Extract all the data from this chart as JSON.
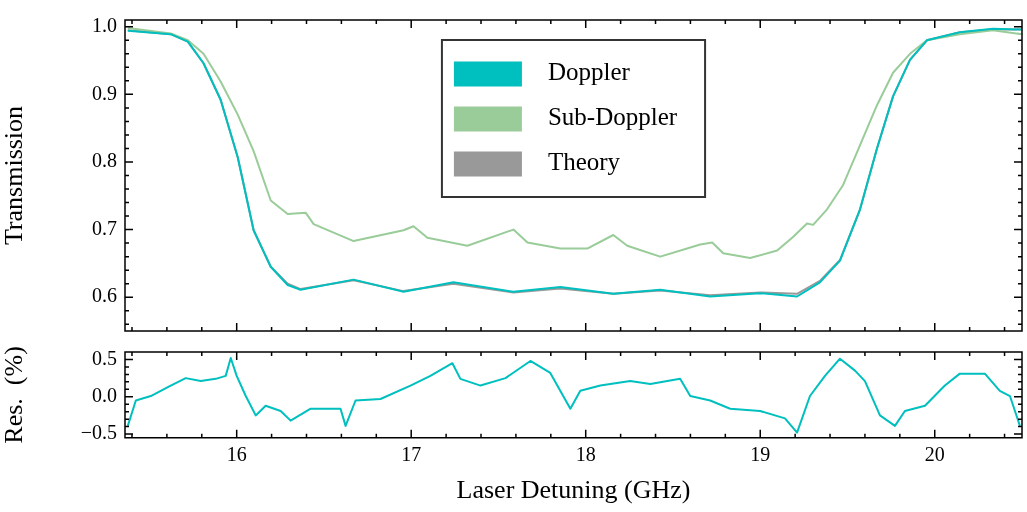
{
  "chart_data": [
    {
      "type": "line",
      "ylabel": "Transmission",
      "legend": "top",
      "tick_labels": "y",
      "xlim": [
        15.36,
        20.5
      ],
      "ylim": [
        0.55,
        1.01
      ],
      "xticks": [
        {
          "value": 15.4,
          "label": null
        },
        {
          "value": 15.6,
          "label": null
        },
        {
          "value": 15.8,
          "label": null
        },
        16,
        {
          "value": 16.2,
          "label": null
        },
        {
          "value": 16.4,
          "label": null
        },
        {
          "value": 16.6,
          "label": null
        },
        {
          "value": 16.8,
          "label": null
        },
        17,
        {
          "value": 17.2,
          "label": null
        },
        {
          "value": 17.4,
          "label": null
        },
        {
          "value": 17.6,
          "label": null
        },
        {
          "value": 17.8,
          "label": null
        },
        18,
        {
          "value": 18.2,
          "label": null
        },
        {
          "value": 18.4,
          "label": null
        },
        {
          "value": 18.6,
          "label": null
        },
        {
          "value": 18.8,
          "label": null
        },
        19,
        {
          "value": 19.2,
          "label": null
        },
        {
          "value": 19.4,
          "label": null
        },
        {
          "value": 19.6,
          "label": null
        },
        {
          "value": 19.8,
          "label": null
        },
        20,
        {
          "value": 20.2,
          "label": null
        },
        {
          "value": 20.4,
          "label": null
        }
      ],
      "yticks": [
        {
          "value": 0.56,
          "label": null
        },
        {
          "value": 0.58,
          "label": null
        },
        0.6,
        {
          "value": 0.62,
          "label": null
        },
        {
          "value": 0.64,
          "label": null
        },
        {
          "value": 0.66,
          "label": null
        },
        {
          "value": 0.68,
          "label": null
        },
        0.7,
        {
          "value": 0.72,
          "label": null
        },
        {
          "value": 0.74,
          "label": null
        },
        {
          "value": 0.76,
          "label": null
        },
        {
          "value": 0.78,
          "label": null
        },
        0.8,
        {
          "value": 0.82,
          "label": null
        },
        {
          "value": 0.84,
          "label": null
        },
        {
          "value": 0.86,
          "label": null
        },
        {
          "value": 0.88,
          "label": null
        },
        0.9,
        {
          "value": 0.92,
          "label": null
        },
        {
          "value": 0.94,
          "label": null
        },
        {
          "value": 0.96,
          "label": null
        },
        {
          "value": 0.98,
          "label": null
        },
        {
          "value": 1,
          "label": "1.0"
        }
      ],
      "series": [
        {
          "name": "Doppler",
          "color": "#00bfbf",
          "x": [
            15.376,
            15.622,
            15.72,
            15.81,
            15.908,
            16.006,
            16.097,
            16.195,
            16.292,
            16.366,
            16.67,
            16.956,
            17.242,
            17.586,
            17.855,
            18.158,
            18.427,
            18.713,
            18.999,
            19.211,
            19.342,
            19.457,
            19.572,
            19.669,
            19.761,
            19.858,
            19.955,
            20.144,
            20.333,
            20.499
          ],
          "values": [
            0.994,
            0.989,
            0.978,
            0.946,
            0.892,
            0.807,
            0.699,
            0.645,
            0.618,
            0.611,
            0.626,
            0.608,
            0.622,
            0.608,
            0.615,
            0.605,
            0.611,
            0.601,
            0.606,
            0.601,
            0.622,
            0.654,
            0.73,
            0.82,
            0.897,
            0.951,
            0.98,
            0.992,
            0.997,
            0.996
          ]
        },
        {
          "name": "Sub-Doppler",
          "color": "#99cc99",
          "x": [
            15.376,
            15.622,
            15.72,
            15.81,
            15.908,
            16.006,
            16.097,
            16.195,
            16.292,
            16.395,
            16.441,
            16.67,
            16.956,
            17.013,
            17.093,
            17.322,
            17.586,
            17.666,
            17.855,
            18.009,
            18.158,
            18.238,
            18.427,
            18.656,
            18.725,
            18.788,
            18.942,
            19.097,
            19.188,
            19.268,
            19.303,
            19.383,
            19.475,
            19.572,
            19.669,
            19.761,
            19.858,
            19.955,
            20.144,
            20.333,
            20.499
          ],
          "values": [
            0.998,
            0.99,
            0.98,
            0.96,
            0.919,
            0.87,
            0.816,
            0.743,
            0.723,
            0.725,
            0.708,
            0.683,
            0.699,
            0.705,
            0.688,
            0.676,
            0.7,
            0.681,
            0.672,
            0.672,
            0.692,
            0.676,
            0.66,
            0.678,
            0.681,
            0.665,
            0.658,
            0.669,
            0.689,
            0.709,
            0.707,
            0.73,
            0.766,
            0.825,
            0.884,
            0.932,
            0.96,
            0.98,
            0.989,
            0.995,
            0.989
          ]
        },
        {
          "name": "Theory",
          "color": "#999999",
          "x": [
            15.376,
            15.622,
            15.72,
            15.81,
            15.908,
            16.006,
            16.097,
            16.195,
            16.292,
            16.366,
            16.67,
            16.956,
            17.242,
            17.586,
            17.855,
            18.158,
            18.427,
            18.713,
            18.999,
            19.211,
            19.342,
            19.457,
            19.572,
            19.669,
            19.761,
            19.858,
            19.955,
            20.144,
            20.333,
            20.499
          ],
          "values": [
            0.995,
            0.989,
            0.978,
            0.946,
            0.892,
            0.807,
            0.699,
            0.645,
            0.62,
            0.612,
            0.625,
            0.609,
            0.62,
            0.607,
            0.613,
            0.605,
            0.61,
            0.603,
            0.607,
            0.605,
            0.624,
            0.655,
            0.73,
            0.82,
            0.897,
            0.951,
            0.98,
            0.992,
            0.996,
            0.996
          ]
        }
      ]
    },
    {
      "type": "line",
      "xlabel": "Laser Detuning (GHz)",
      "ylabel": "Res.  (%)",
      "xlim": [
        15.36,
        20.5
      ],
      "ylim": [
        -0.55,
        0.6
      ],
      "xticks": [
        {
          "value": 15.4,
          "label": null
        },
        {
          "value": 15.6,
          "label": null
        },
        {
          "value": 15.8,
          "label": null
        },
        16,
        {
          "value": 16.2,
          "label": null
        },
        {
          "value": 16.4,
          "label": null
        },
        {
          "value": 16.6,
          "label": null
        },
        {
          "value": 16.8,
          "label": null
        },
        17,
        {
          "value": 17.2,
          "label": null
        },
        {
          "value": 17.4,
          "label": null
        },
        {
          "value": 17.6,
          "label": null
        },
        {
          "value": 17.8,
          "label": null
        },
        18,
        {
          "value": 18.2,
          "label": null
        },
        {
          "value": 18.4,
          "label": null
        },
        {
          "value": 18.6,
          "label": null
        },
        {
          "value": 18.8,
          "label": null
        },
        19,
        {
          "value": 19.2,
          "label": null
        },
        {
          "value": 19.4,
          "label": null
        },
        {
          "value": 19.6,
          "label": null
        },
        {
          "value": 19.8,
          "label": null
        },
        20,
        {
          "value": 20.2,
          "label": null
        },
        {
          "value": 20.4,
          "label": null
        }
      ],
      "yticks": [
        {
          "value": -0.5,
          "label": "−0.5"
        },
        {
          "value": -0.4,
          "label": null
        },
        {
          "value": -0.3,
          "label": null
        },
        {
          "value": -0.2,
          "label": null
        },
        {
          "value": -0.1,
          "label": null
        },
        {
          "value": 0,
          "label": "0.0"
        },
        {
          "value": 0.1,
          "label": null
        },
        {
          "value": 0.2,
          "label": null
        },
        {
          "value": 0.3,
          "label": null
        },
        {
          "value": 0.4,
          "label": null
        },
        0.5
      ],
      "series": [
        {
          "color": "#00bfbf",
          "x": [
            15.376,
            15.422,
            15.508,
            15.622,
            15.708,
            15.794,
            15.88,
            15.937,
            15.966,
            16.0,
            16.052,
            16.109,
            16.166,
            16.252,
            16.309,
            16.424,
            16.595,
            16.624,
            16.681,
            16.824,
            16.996,
            17.11,
            17.236,
            17.282,
            17.397,
            17.54,
            17.683,
            17.797,
            17.912,
            17.969,
            18.084,
            18.255,
            18.37,
            18.541,
            18.599,
            18.713,
            18.828,
            18.999,
            19.142,
            19.211,
            19.285,
            19.371,
            19.457,
            19.543,
            19.6,
            19.686,
            19.772,
            19.829,
            19.944,
            20.058,
            20.144,
            20.287,
            20.373,
            20.431,
            20.488
          ],
          "values": [
            -0.39,
            -0.05,
            0.01,
            0.15,
            0.25,
            0.21,
            0.24,
            0.28,
            0.52,
            0.28,
            0.01,
            -0.25,
            -0.12,
            -0.19,
            -0.32,
            -0.16,
            -0.16,
            -0.39,
            -0.05,
            -0.03,
            0.15,
            0.28,
            0.45,
            0.24,
            0.15,
            0.25,
            0.48,
            0.32,
            -0.16,
            0.08,
            0.15,
            0.21,
            0.17,
            0.24,
            0.01,
            -0.05,
            -0.16,
            -0.19,
            -0.29,
            -0.48,
            0.01,
            0.28,
            0.51,
            0.35,
            0.21,
            -0.25,
            -0.39,
            -0.19,
            -0.12,
            0.15,
            0.31,
            0.31,
            0.08,
            0.01,
            -0.39
          ]
        }
      ]
    }
  ]
}
